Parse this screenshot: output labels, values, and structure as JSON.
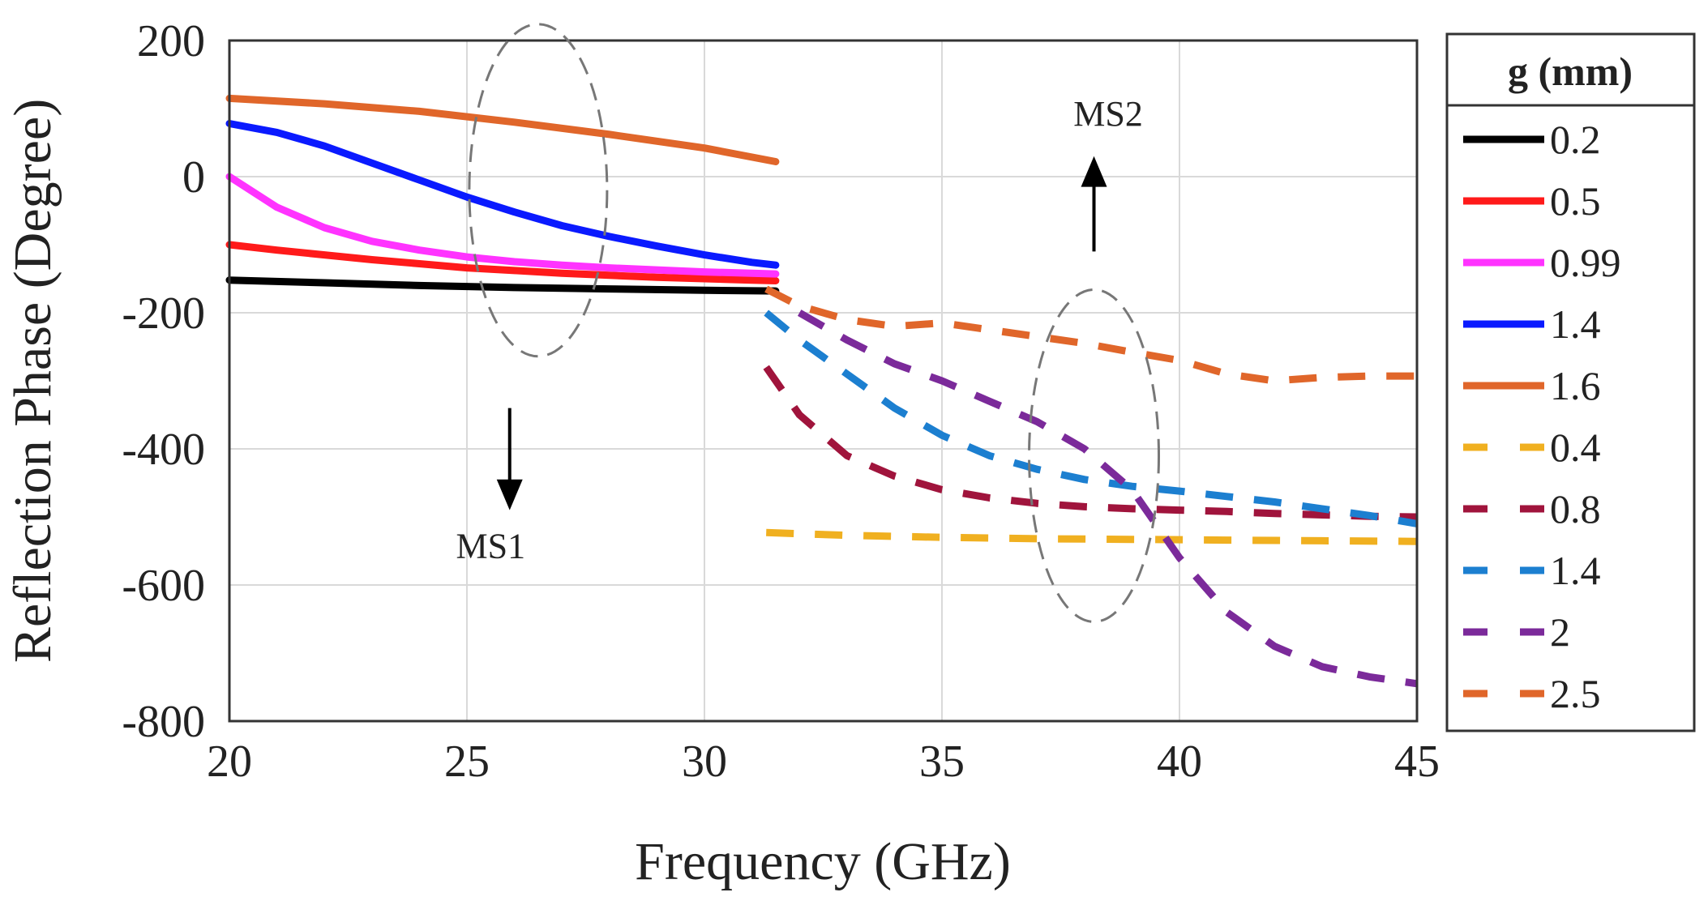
{
  "chart_data": {
    "type": "line",
    "title": "",
    "xlabel": "Frequency (GHz)",
    "ylabel": "Reflection Phase (Degree)",
    "xlim": [
      20,
      45
    ],
    "ylim": [
      -800,
      200
    ],
    "xticks": [
      20,
      25,
      30,
      35,
      40,
      45
    ],
    "yticks": [
      200,
      0,
      -200,
      -400,
      -600,
      -800
    ],
    "grid": true,
    "legend_title": "g (mm)",
    "legend_position": "outside-right",
    "series": [
      {
        "name": "0.2",
        "group": "MS1",
        "style": "solid",
        "color": "#000000",
        "x": [
          20,
          22,
          24,
          26,
          28,
          30,
          31.5
        ],
        "y": [
          -152,
          -156,
          -160,
          -163,
          -165,
          -167,
          -168
        ]
      },
      {
        "name": "0.5",
        "group": "MS1",
        "style": "solid",
        "color": "#ff1a1a",
        "x": [
          20,
          21,
          22,
          23,
          24,
          25,
          26,
          27,
          28,
          29,
          30,
          31,
          31.5
        ],
        "y": [
          -100,
          -108,
          -115,
          -122,
          -128,
          -134,
          -138,
          -142,
          -145,
          -148,
          -150,
          -152,
          -153
        ]
      },
      {
        "name": "0.99",
        "group": "MS1",
        "style": "solid",
        "color": "#ff33ff",
        "x": [
          20,
          21,
          22,
          23,
          24,
          25,
          26,
          27,
          28,
          29,
          30,
          31,
          31.5
        ],
        "y": [
          0,
          -45,
          -75,
          -95,
          -108,
          -118,
          -125,
          -130,
          -134,
          -137,
          -140,
          -142,
          -143
        ]
      },
      {
        "name": "1.4",
        "group": "MS1",
        "style": "solid",
        "color": "#0a1aff",
        "x": [
          20,
          21,
          22,
          23,
          24,
          25,
          26,
          27,
          28,
          29,
          30,
          31,
          31.5
        ],
        "y": [
          78,
          65,
          45,
          20,
          -5,
          -30,
          -52,
          -72,
          -88,
          -102,
          -115,
          -126,
          -130
        ]
      },
      {
        "name": "1.6",
        "group": "MS1",
        "style": "solid",
        "color": "#e0662a",
        "x": [
          20,
          22,
          24,
          26,
          28,
          30,
          31.5
        ],
        "y": [
          115,
          107,
          96,
          80,
          62,
          42,
          22
        ]
      },
      {
        "name": "0.4",
        "group": "MS2",
        "style": "dashed",
        "color": "#f0b020",
        "x": [
          31.3,
          33,
          35,
          37,
          39,
          41,
          43,
          45
        ],
        "y": [
          -523,
          -527,
          -530,
          -532,
          -533,
          -534,
          -535,
          -536
        ]
      },
      {
        "name": "0.8",
        "group": "MS2",
        "style": "dashed",
        "color": "#a0143c",
        "x": [
          31.3,
          32,
          33,
          34,
          35,
          36,
          37,
          38,
          39,
          40,
          41,
          42,
          43,
          44,
          45
        ],
        "y": [
          -280,
          -350,
          -410,
          -440,
          -460,
          -472,
          -480,
          -485,
          -488,
          -490,
          -492,
          -495,
          -497,
          -499,
          -500
        ]
      },
      {
        "name": "1.4",
        "group": "MS2",
        "style": "dashed",
        "color": "#1c7fd0",
        "x": [
          31.3,
          32,
          33,
          34,
          35,
          36,
          37,
          38,
          39,
          40,
          41,
          42,
          43,
          44,
          45
        ],
        "y": [
          -200,
          -240,
          -290,
          -340,
          -380,
          -410,
          -430,
          -445,
          -455,
          -462,
          -470,
          -478,
          -488,
          -498,
          -510
        ]
      },
      {
        "name": "2",
        "group": "MS2",
        "style": "dashed",
        "color": "#7b2a9a",
        "x": [
          32,
          33,
          34,
          35,
          36,
          37,
          38,
          39,
          40,
          41,
          42,
          43,
          44,
          45
        ],
        "y": [
          -200,
          -240,
          -275,
          -300,
          -330,
          -360,
          -400,
          -460,
          -560,
          -640,
          -690,
          -720,
          -735,
          -745
        ]
      },
      {
        "name": "2.5",
        "group": "MS2",
        "style": "dashed",
        "color": "#e0662a",
        "x": [
          31.3,
          32,
          33,
          34,
          35,
          36,
          37,
          38,
          39,
          40,
          41,
          42,
          43,
          44,
          45
        ],
        "y": [
          -165,
          -190,
          -210,
          -220,
          -215,
          -225,
          -235,
          -245,
          -258,
          -270,
          -290,
          -300,
          -295,
          -293,
          -293
        ]
      }
    ],
    "annotations": [
      {
        "text": "MS1",
        "arrow": "down"
      },
      {
        "text": "MS2",
        "arrow": "up"
      }
    ]
  }
}
